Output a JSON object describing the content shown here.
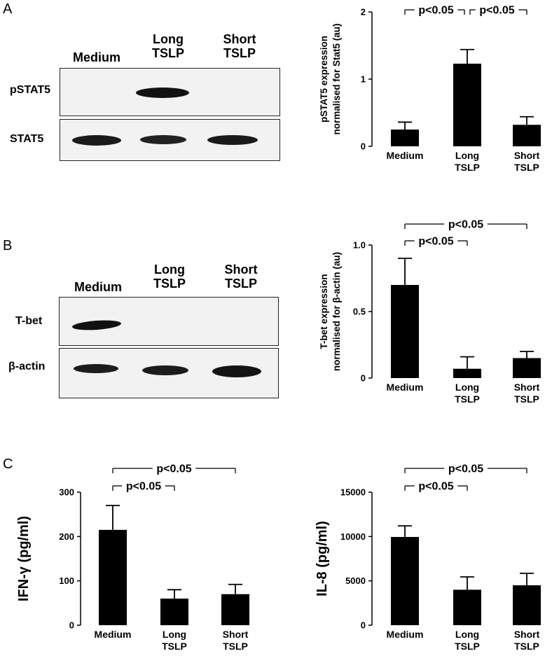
{
  "panels": {
    "A": {
      "letter": "A",
      "lanes": [
        "Medium",
        "Long TSLP",
        "Short TSLP"
      ],
      "rows": [
        "pSTAT5",
        "STAT5"
      ]
    },
    "B": {
      "letter": "B",
      "lanes": [
        "Medium",
        "Long TSLP",
        "Short TSLP"
      ],
      "rows": [
        "T-bet",
        "β-actin"
      ]
    },
    "C": {
      "letter": "C"
    }
  },
  "chart_data": [
    {
      "id": "chartA",
      "type": "bar",
      "categories": [
        "Medium",
        "Long TSLP",
        "Short TSLP"
      ],
      "values": [
        0.25,
        1.23,
        0.32
      ],
      "errors": [
        0.11,
        0.21,
        0.12
      ],
      "ylabel": "pSTAT5 expression normalised for Stat5 (au)",
      "ylim": [
        0,
        2
      ],
      "yticks": [
        0,
        1,
        2
      ],
      "sig": [
        {
          "from": 0,
          "to": 1,
          "label": "p<0.05",
          "level": 0
        },
        {
          "from": 1,
          "to": 2,
          "label": "p<0.05",
          "level": 0
        }
      ]
    },
    {
      "id": "chartB",
      "type": "bar",
      "categories": [
        "Medium",
        "Long TSLP",
        "Short TSLP"
      ],
      "values": [
        0.7,
        0.07,
        0.15
      ],
      "errors": [
        0.2,
        0.09,
        0.05
      ],
      "ylabel": "T-bet expression normalised for β-actin (au)",
      "ylim": [
        0,
        1.0
      ],
      "yticks": [
        0,
        0.5,
        1.0
      ],
      "sig": [
        {
          "from": 0,
          "to": 1,
          "label": "p<0.05",
          "level": 0
        },
        {
          "from": 0,
          "to": 2,
          "label": "p<0.05",
          "level": 1
        }
      ]
    },
    {
      "id": "chartC1",
      "type": "bar",
      "categories": [
        "Medium",
        "Long TSLP",
        "Short TSLP"
      ],
      "values": [
        215,
        60,
        70
      ],
      "errors": [
        55,
        20,
        22
      ],
      "ylabel": "IFN-γ (pg/ml)",
      "ylim": [
        0,
        300
      ],
      "yticks": [
        0,
        100,
        200,
        300
      ],
      "sig": [
        {
          "from": 0,
          "to": 1,
          "label": "p<0.05",
          "level": 0
        },
        {
          "from": 0,
          "to": 2,
          "label": "p<0.05",
          "level": 1
        }
      ]
    },
    {
      "id": "chartC2",
      "type": "bar",
      "categories": [
        "Medium",
        "Long TSLP",
        "Short TSLP"
      ],
      "values": [
        9950,
        4000,
        4500
      ],
      "errors": [
        1250,
        1450,
        1350
      ],
      "ylabel": "IL-8 (pg/ml)",
      "ylim": [
        0,
        15000
      ],
      "yticks": [
        0,
        5000,
        10000,
        15000
      ],
      "sig": [
        {
          "from": 0,
          "to": 1,
          "label": "p<0.05",
          "level": 0
        },
        {
          "from": 0,
          "to": 2,
          "label": "p<0.05",
          "level": 1
        }
      ]
    }
  ]
}
